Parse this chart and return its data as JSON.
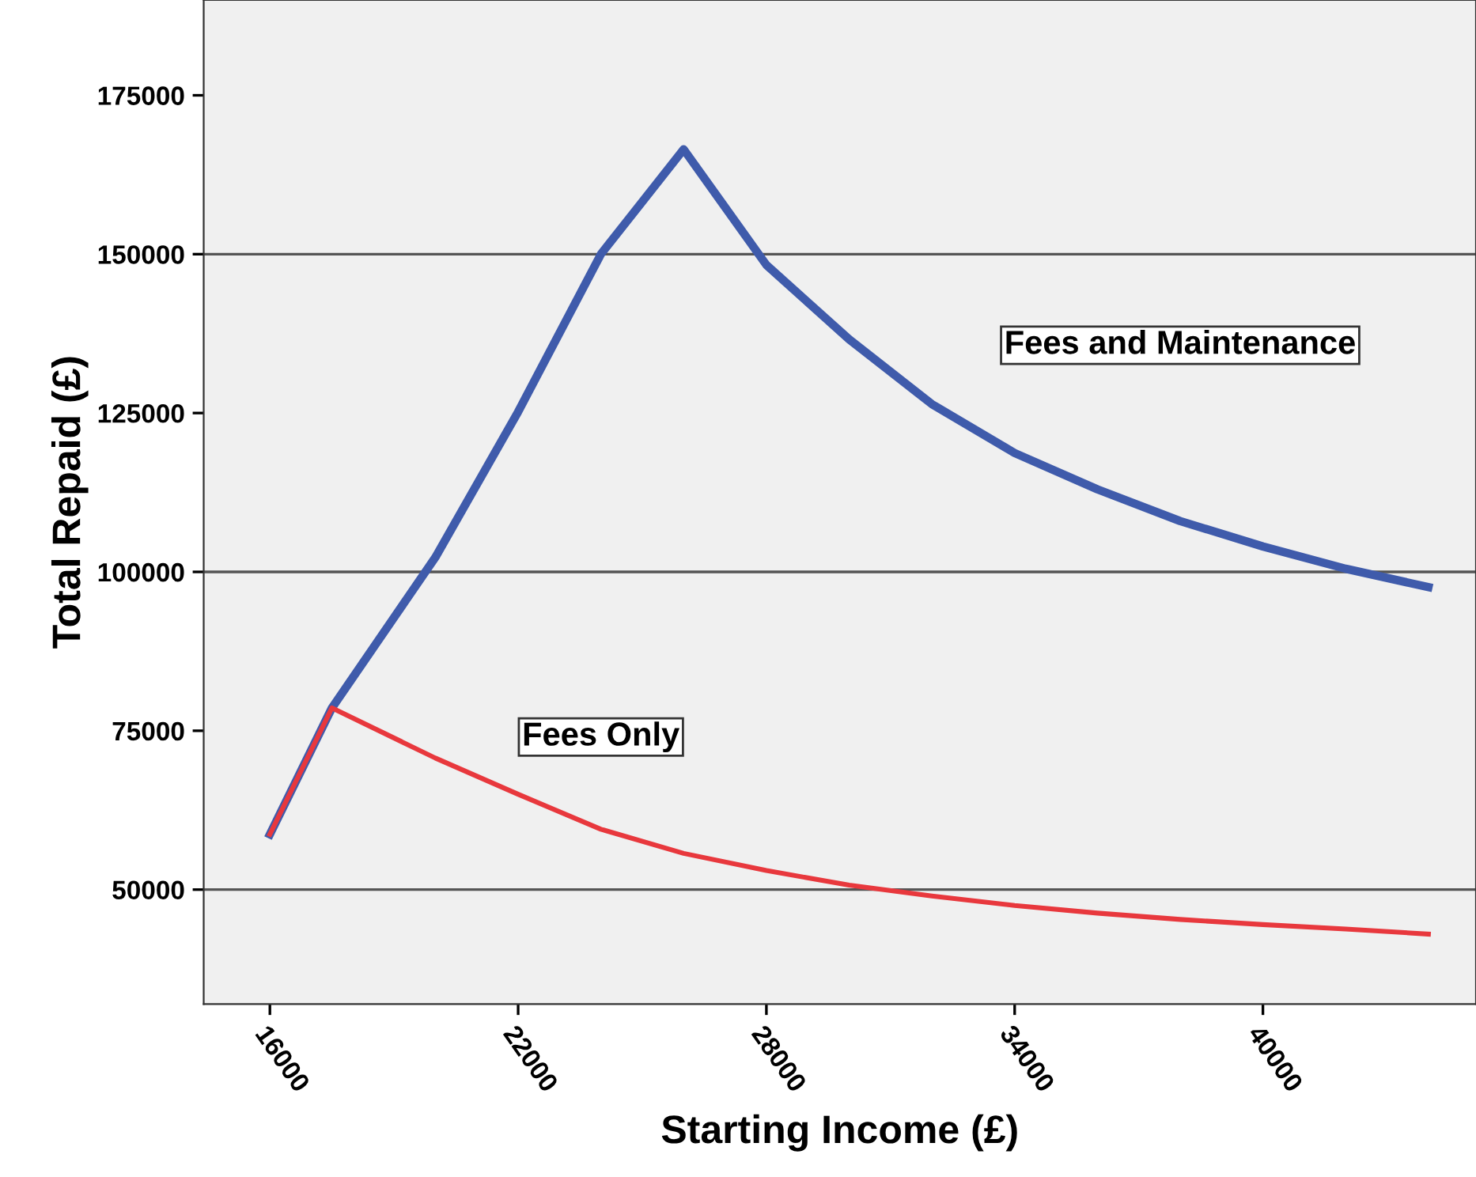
{
  "chart_data": {
    "type": "line",
    "xlabel": "Starting Income (£)",
    "ylabel": "Total Repaid (£)",
    "xlim": [
      14400,
      45150
    ],
    "ylim": [
      32000,
      190000
    ],
    "xticks": [
      16000,
      22000,
      28000,
      34000,
      40000
    ],
    "yticks": [
      50000,
      75000,
      100000,
      125000,
      150000,
      175000
    ],
    "grid": false,
    "legend": false,
    "marker": "none",
    "line_style": "solid",
    "ref_lines": [
      {
        "axis": "y",
        "value": 50000,
        "color": "#555555"
      },
      {
        "axis": "y",
        "value": 100000,
        "color": "#555555"
      },
      {
        "axis": "y",
        "value": 150000,
        "color": "#555555"
      }
    ],
    "series": [
      {
        "name": "Fees and Maintenance",
        "color": "#3f5bab",
        "x": [
          16000,
          17500,
          20000,
          22000,
          24000,
          26000,
          28000,
          30000,
          32000,
          34000,
          36000,
          38000,
          40000,
          42000,
          44000
        ],
        "values": [
          58700,
          78600,
          102300,
          125200,
          150000,
          166500,
          148300,
          136600,
          126400,
          118700,
          113000,
          108000,
          104000,
          100500,
          97600
        ]
      },
      {
        "name": "Fees Only",
        "color": "#e8383d",
        "x": [
          16000,
          17500,
          20000,
          22000,
          24000,
          26000,
          28000,
          30000,
          32000,
          34000,
          36000,
          38000,
          40000,
          42000,
          44000
        ],
        "values": [
          58700,
          78600,
          70700,
          65000,
          59500,
          55700,
          53000,
          50700,
          49000,
          47500,
          46300,
          45300,
          44500,
          43800,
          43000
        ]
      }
    ]
  }
}
